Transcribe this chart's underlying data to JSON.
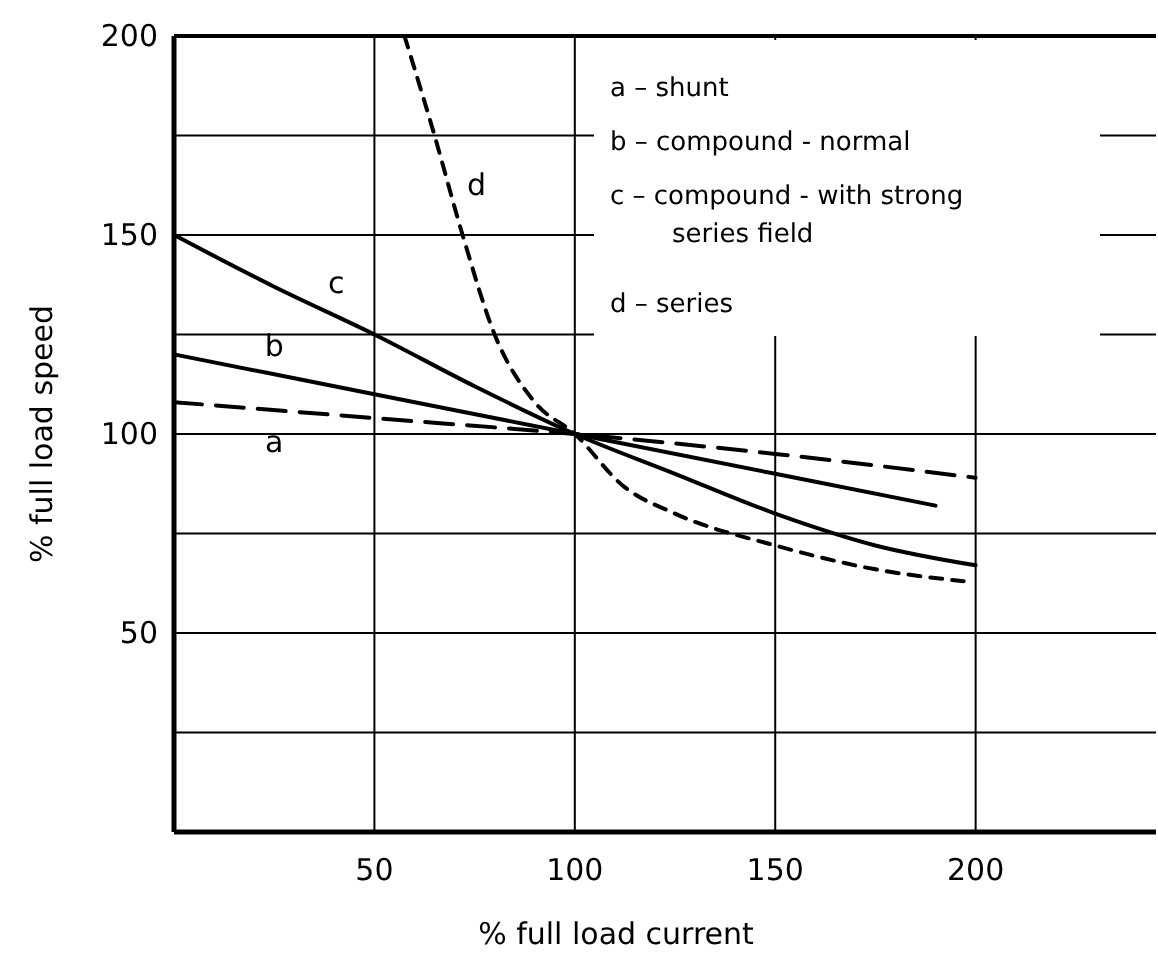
{
  "chart_data": {
    "type": "line",
    "xlabel": "% full load current",
    "ylabel": "% full load speed",
    "xlim": [
      0,
      245
    ],
    "ylim": [
      0,
      200
    ],
    "xticks": [
      50,
      100,
      150,
      200
    ],
    "yticks": [
      {
        "value": 25,
        "label": null
      },
      50,
      {
        "value": 75,
        "label": null
      },
      100,
      {
        "value": 125,
        "label": null
      },
      150,
      {
        "value": 175,
        "label": null
      },
      200
    ],
    "grid": true,
    "marker": "none",
    "series": [
      {
        "name": "a",
        "color": "#000000",
        "line_style": "dashed",
        "x": [
          0,
          50,
          100,
          150,
          200
        ],
        "values": [
          108,
          104,
          100,
          95,
          89
        ]
      },
      {
        "name": "b",
        "color": "#000000",
        "line_style": "solid",
        "x": [
          0,
          50,
          100,
          150,
          190
        ],
        "values": [
          120,
          110,
          100,
          90,
          82
        ]
      },
      {
        "name": "c",
        "color": "#000000",
        "line_style": "solid",
        "x": [
          0,
          25,
          50,
          75,
          100,
          125,
          150,
          175,
          200
        ],
        "values": [
          150,
          137,
          125,
          112,
          100,
          90,
          80,
          72,
          67
        ]
      },
      {
        "name": "d",
        "color": "#000000",
        "line_style": "dotted",
        "x": [
          57.5,
          65,
          72,
          80,
          90,
          100,
          112,
          125,
          150,
          175,
          197
        ],
        "values": [
          200,
          175,
          150,
          125,
          108,
          100,
          87,
          80,
          72,
          66,
          63
        ]
      }
    ],
    "annotations": [
      "a – shunt",
      "b – compound - normal",
      "c – compound - with strong\nseries field",
      "d – series"
    ]
  }
}
